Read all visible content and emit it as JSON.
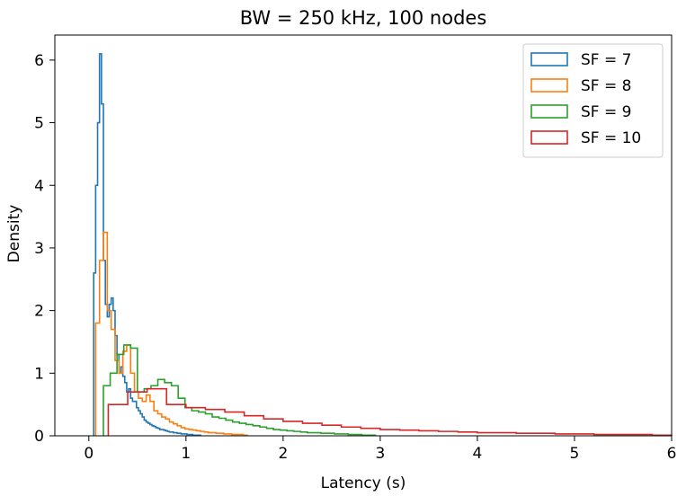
{
  "chart_data": {
    "type": "histogram-step",
    "title": "BW = 250 kHz, 100 nodes",
    "xlabel": "Latency (s)",
    "ylabel": "Density",
    "xlim": [
      -0.35,
      6
    ],
    "ylim": [
      0,
      6.4
    ],
    "xticks": [
      0,
      1,
      2,
      3,
      4,
      5,
      6
    ],
    "yticks": [
      0,
      1,
      2,
      3,
      4,
      5,
      6
    ],
    "legend_position": "top-right",
    "series": [
      {
        "name": "SF = 7",
        "color": "#1f77b4",
        "edges": [
          0.05,
          0.07,
          0.09,
          0.11,
          0.13,
          0.15,
          0.17,
          0.19,
          0.21,
          0.23,
          0.25,
          0.27,
          0.29,
          0.31,
          0.33,
          0.35,
          0.37,
          0.39,
          0.41,
          0.43,
          0.45,
          0.47,
          0.49,
          0.51,
          0.53,
          0.55,
          0.57,
          0.59,
          0.61,
          0.63,
          0.65,
          0.67,
          0.69,
          0.71,
          0.73,
          0.75,
          0.77,
          0.79,
          0.81,
          0.83,
          0.85,
          0.87,
          0.89,
          0.91,
          0.93,
          0.95,
          0.97,
          0.99,
          1.01,
          1.03,
          1.05,
          1.07,
          1.09,
          1.11,
          1.13,
          1.15
        ],
        "densities": [
          2.6,
          4.0,
          5.0,
          6.1,
          5.3,
          2.8,
          2.1,
          1.9,
          2.1,
          2.2,
          2.0,
          1.6,
          1.3,
          1.0,
          1.1,
          0.95,
          0.85,
          0.7,
          0.75,
          0.6,
          0.55,
          0.55,
          0.45,
          0.4,
          0.35,
          0.3,
          0.25,
          0.22,
          0.2,
          0.18,
          0.16,
          0.15,
          0.13,
          0.12,
          0.1,
          0.1,
          0.09,
          0.08,
          0.07,
          0.06,
          0.06,
          0.05,
          0.05,
          0.04,
          0.04,
          0.03,
          0.03,
          0.03,
          0.02,
          0.02,
          0.02,
          0.01,
          0.01,
          0.01,
          0.01
        ]
      },
      {
        "name": "SF = 8",
        "color": "#ff7f0e",
        "edges": [
          0.07,
          0.11,
          0.15,
          0.19,
          0.23,
          0.27,
          0.31,
          0.35,
          0.39,
          0.43,
          0.47,
          0.51,
          0.55,
          0.59,
          0.63,
          0.67,
          0.71,
          0.75,
          0.79,
          0.83,
          0.87,
          0.91,
          0.95,
          0.99,
          1.03,
          1.07,
          1.11,
          1.15,
          1.19,
          1.23,
          1.27,
          1.31,
          1.35,
          1.39,
          1.43,
          1.47,
          1.51,
          1.55,
          1.59,
          1.63
        ],
        "densities": [
          1.8,
          2.8,
          3.25,
          2.0,
          1.7,
          1.2,
          1.0,
          1.35,
          1.45,
          1.0,
          0.7,
          0.6,
          0.55,
          0.65,
          0.55,
          0.4,
          0.35,
          0.3,
          0.27,
          0.22,
          0.19,
          0.16,
          0.13,
          0.11,
          0.1,
          0.09,
          0.08,
          0.07,
          0.06,
          0.05,
          0.05,
          0.04,
          0.04,
          0.03,
          0.03,
          0.02,
          0.02,
          0.02,
          0.01
        ]
      },
      {
        "name": "SF = 9",
        "color": "#2ca02c",
        "edges": [
          0.15,
          0.22,
          0.29,
          0.36,
          0.43,
          0.5,
          0.57,
          0.64,
          0.71,
          0.78,
          0.85,
          0.92,
          0.99,
          1.06,
          1.13,
          1.2,
          1.27,
          1.34,
          1.41,
          1.48,
          1.55,
          1.62,
          1.69,
          1.76,
          1.83,
          1.9,
          1.97,
          2.04,
          2.11,
          2.18,
          2.25,
          2.32,
          2.39,
          2.46,
          2.53,
          2.6,
          2.67,
          2.74,
          2.81,
          2.88,
          2.95
        ],
        "densities": [
          0.8,
          1.0,
          1.3,
          1.45,
          1.4,
          0.7,
          0.75,
          0.8,
          0.9,
          0.85,
          0.8,
          0.6,
          0.45,
          0.4,
          0.38,
          0.35,
          0.3,
          0.28,
          0.25,
          0.22,
          0.2,
          0.18,
          0.16,
          0.14,
          0.12,
          0.1,
          0.09,
          0.08,
          0.07,
          0.06,
          0.05,
          0.05,
          0.04,
          0.04,
          0.03,
          0.03,
          0.02,
          0.02,
          0.01,
          0.01
        ]
      },
      {
        "name": "SF = 10",
        "color": "#d62728",
        "edges": [
          0.2,
          0.4,
          0.6,
          0.8,
          1.0,
          1.2,
          1.4,
          1.6,
          1.8,
          2.0,
          2.2,
          2.4,
          2.6,
          2.8,
          3.0,
          3.2,
          3.4,
          3.6,
          3.8,
          4.0,
          4.2,
          4.4,
          4.6,
          4.8,
          5.0,
          5.2,
          5.4,
          5.6,
          5.8,
          6.0
        ],
        "densities": [
          0.5,
          0.7,
          0.75,
          0.5,
          0.45,
          0.42,
          0.38,
          0.32,
          0.27,
          0.23,
          0.2,
          0.17,
          0.14,
          0.12,
          0.1,
          0.09,
          0.08,
          0.07,
          0.06,
          0.05,
          0.05,
          0.04,
          0.04,
          0.03,
          0.03,
          0.02,
          0.02,
          0.02,
          0.01
        ]
      }
    ]
  }
}
